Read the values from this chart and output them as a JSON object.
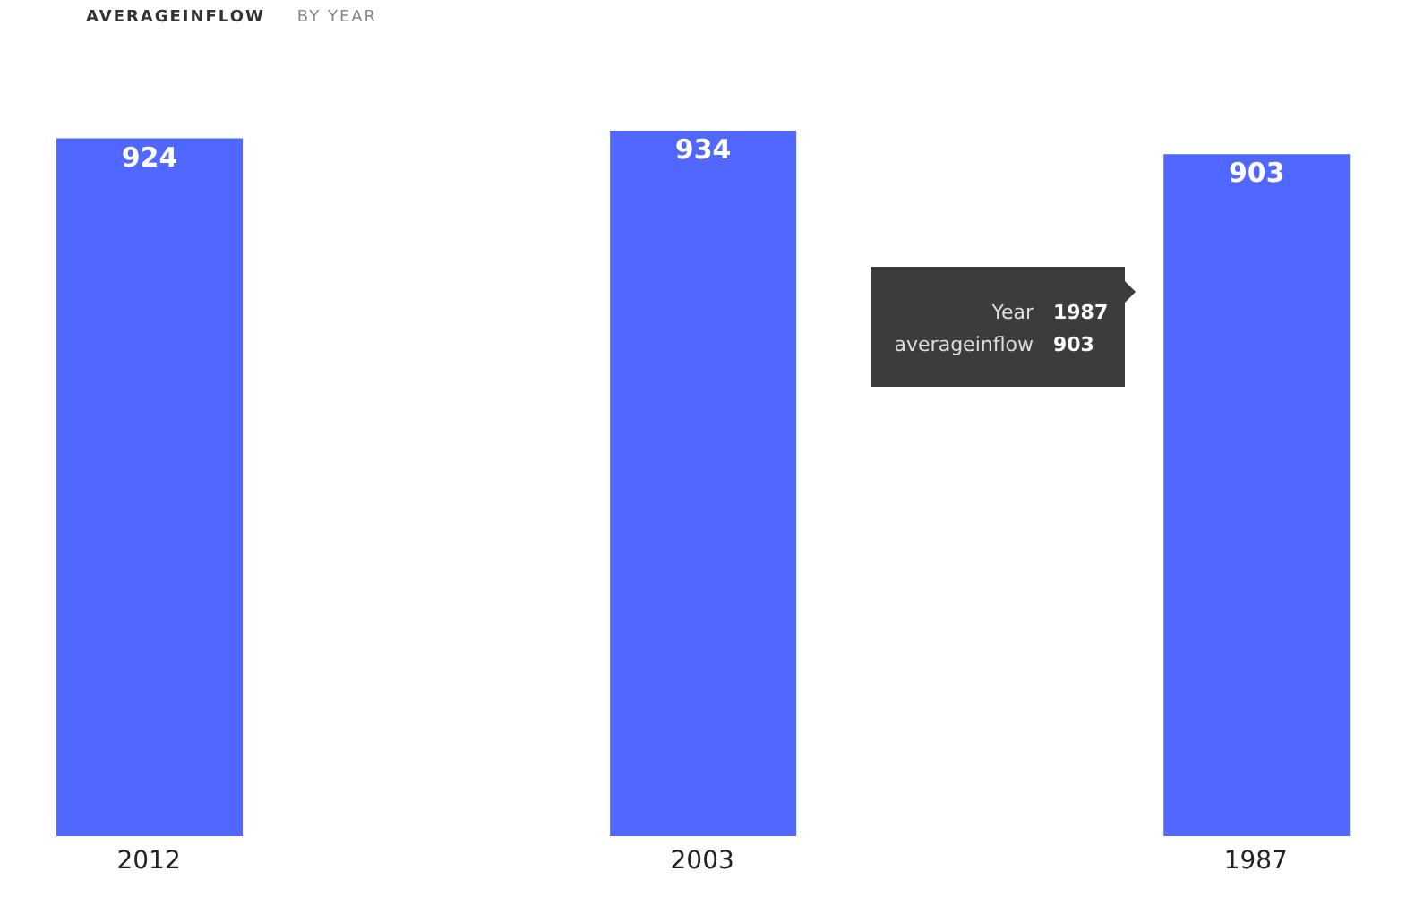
{
  "chart_data": {
    "type": "bar",
    "title": "AVERAGEINFLOW",
    "subtitle": "BY YEAR",
    "categories": [
      "2012",
      "2003",
      "1987"
    ],
    "values": [
      924,
      934,
      903
    ],
    "color": "#5068ff",
    "data_labels": true,
    "annotations": [
      "Year",
      "1987",
      "averageinflow",
      "903"
    ]
  }
}
